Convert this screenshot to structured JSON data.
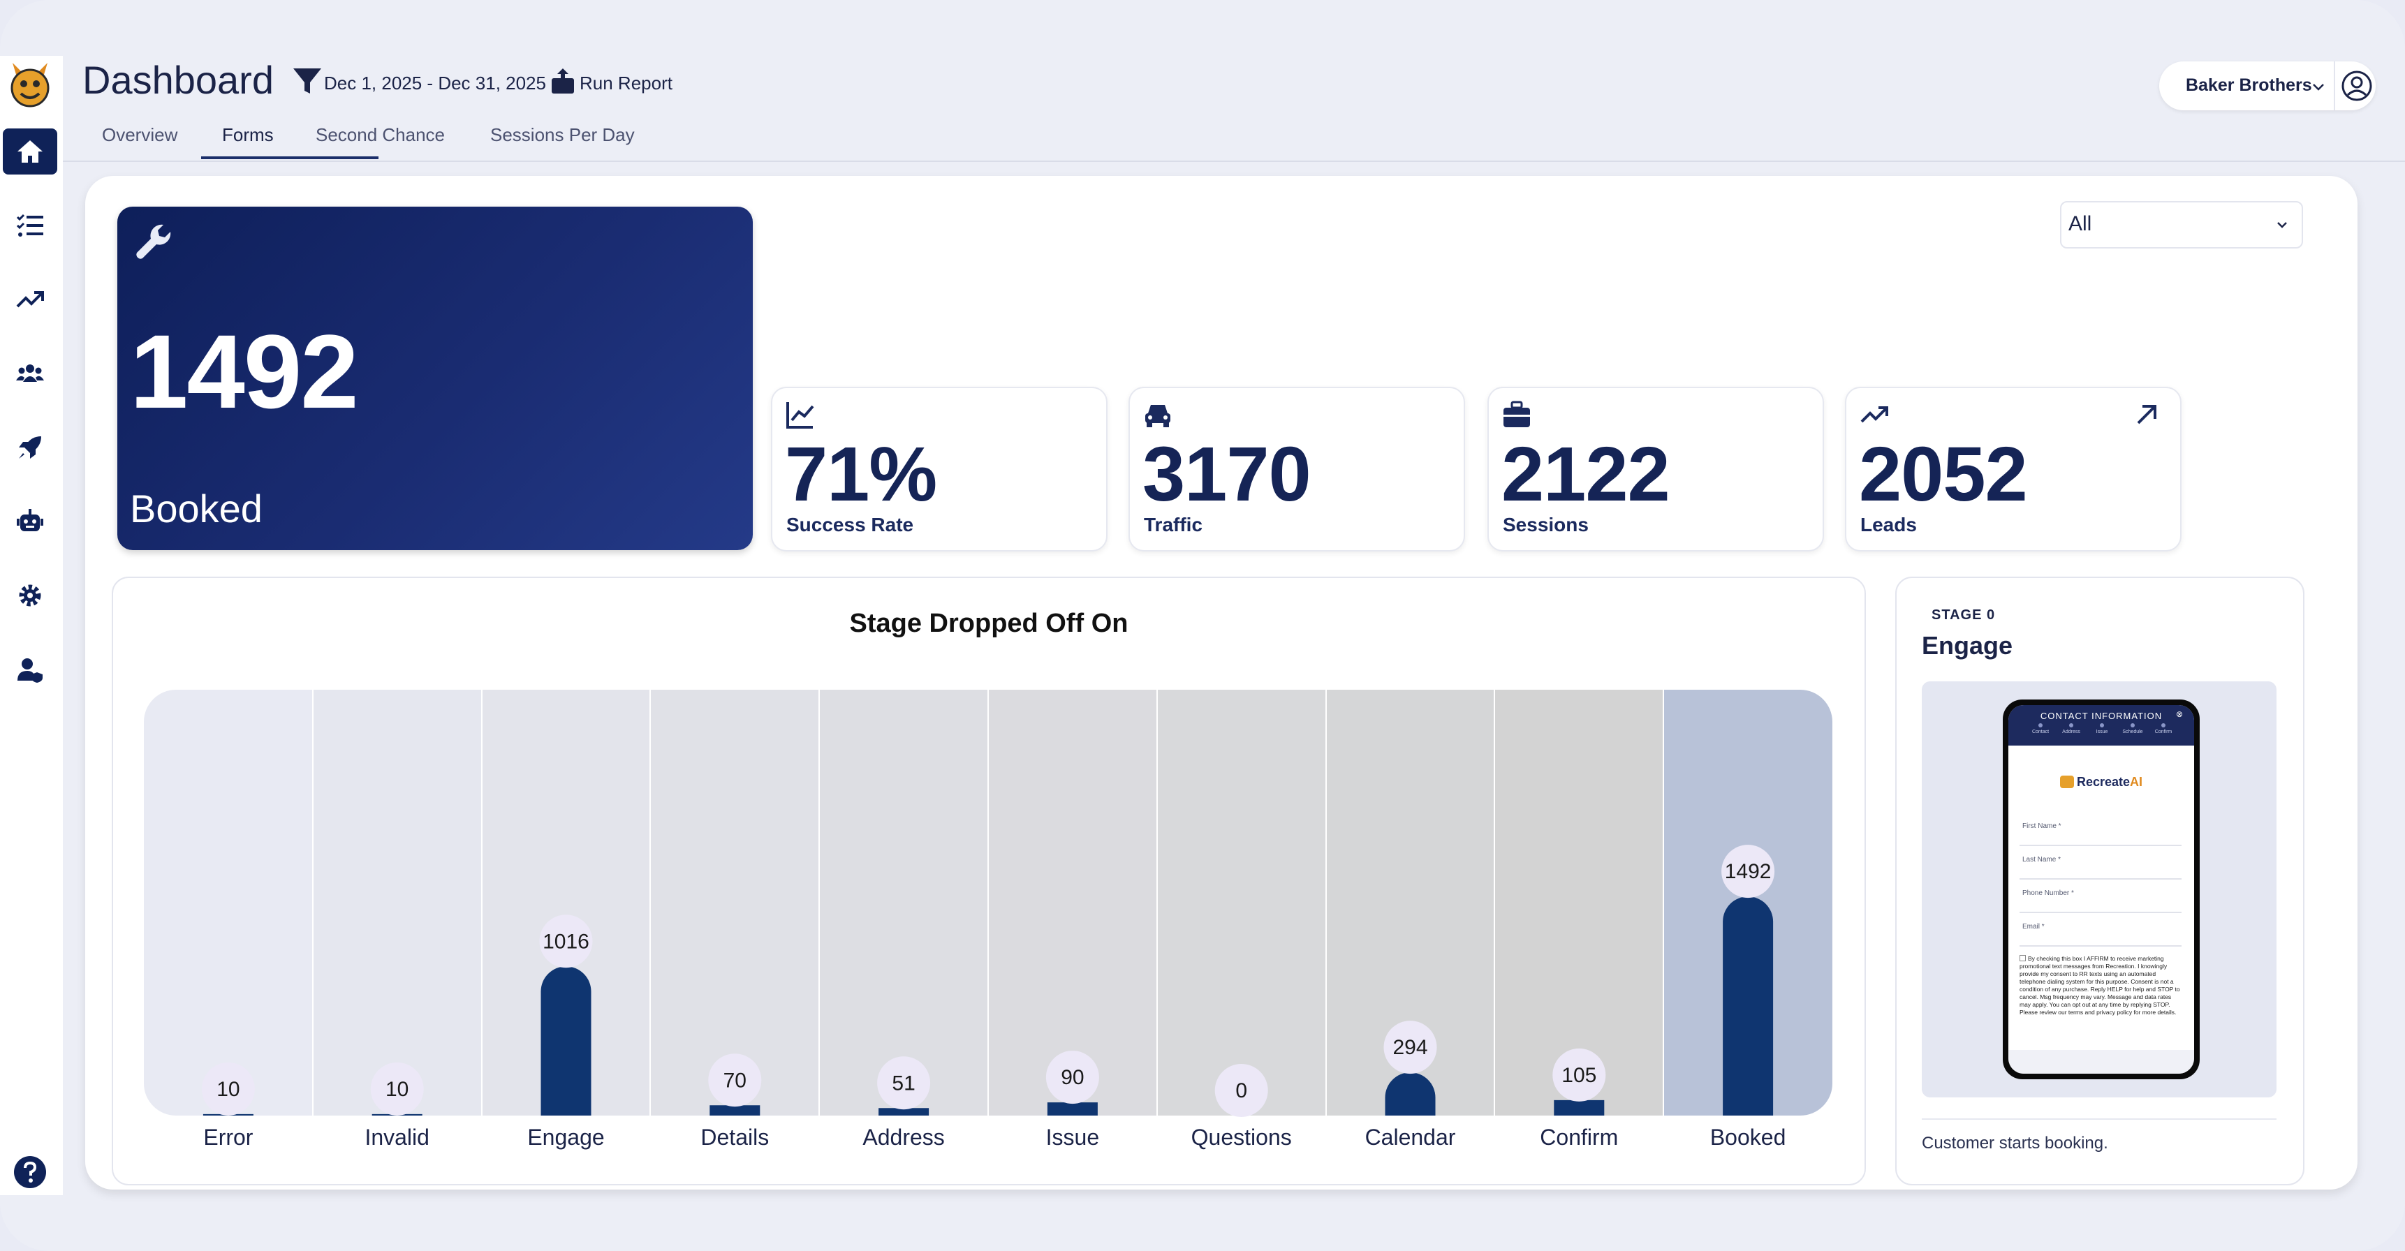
{
  "app": {
    "title": "Dashboard"
  },
  "header": {
    "date_range": "Dec 1, 2025 - Dec 31, 2025",
    "run_report": "Run Report",
    "account": "Baker Brothers"
  },
  "tabs": [
    {
      "label": "Overview"
    },
    {
      "label": "Forms"
    },
    {
      "label": "Second Chance"
    },
    {
      "label": "Sessions Per Day"
    }
  ],
  "active_tab": "Forms",
  "sidebar": {
    "items": [
      {
        "icon": "home-icon"
      },
      {
        "icon": "checklist-icon"
      },
      {
        "icon": "trending-icon"
      },
      {
        "icon": "users-icon"
      },
      {
        "icon": "rocket-icon"
      },
      {
        "icon": "robot-icon"
      },
      {
        "icon": "gear-icon"
      },
      {
        "icon": "user-shield-icon"
      }
    ],
    "help_icon": "question-icon"
  },
  "filter": {
    "selected": "All"
  },
  "hero": {
    "value": "1492",
    "label": "Booked",
    "icon": "wrench-icon"
  },
  "stats": [
    {
      "value": "71%",
      "label": "Success Rate",
      "icon": "line-chart-icon"
    },
    {
      "value": "3170",
      "label": "Traffic",
      "icon": "car-icon"
    },
    {
      "value": "2122",
      "label": "Sessions",
      "icon": "briefcase-icon"
    },
    {
      "value": "2052",
      "label": "Leads",
      "icon": "trending-icon"
    }
  ],
  "chart_data": {
    "type": "bar",
    "title": "Stage Dropped Off On",
    "categories": [
      "Error",
      "Invalid",
      "Engage",
      "Details",
      "Address",
      "Issue",
      "Questions",
      "Calendar",
      "Confirm",
      "Booked"
    ],
    "values": [
      10,
      10,
      1016,
      70,
      51,
      90,
      0,
      294,
      105,
      1492
    ],
    "ylim": [
      0,
      2900
    ],
    "xlabel": "",
    "ylabel": "",
    "colors": {
      "bar": "#0f3570",
      "label_bubble": "#ece8f7"
    }
  },
  "preview": {
    "stage_tag": "STAGE 0",
    "stage_name": "Engage",
    "caption": "Customer starts booking.",
    "phone": {
      "header": "CONTACT INFORMATION",
      "steps": [
        "Contact",
        "Address",
        "Issue",
        "Schedule",
        "Confirm"
      ],
      "brand": "Recreate",
      "brand_ai": "AI",
      "fields": [
        "First Name *",
        "Last Name *",
        "Phone Number *",
        "Email *"
      ],
      "legal": "By checking this box I AFFIRM to receive marketing promotional text messages from Recreation. I knowingly provide my consent to RR texts using an automated telephone dialing system for this purpose. Consent is not a condition of any purchase. Reply HELP for help and STOP to cancel. Msg frequency may vary. Message and data rates may apply. You can opt out at any time by replying STOP. Please review our terms and privacy policy for more details."
    }
  },
  "colors": {
    "primary": "#0f2258",
    "bar": "#0f3570",
    "background": "#e9ebf5"
  }
}
